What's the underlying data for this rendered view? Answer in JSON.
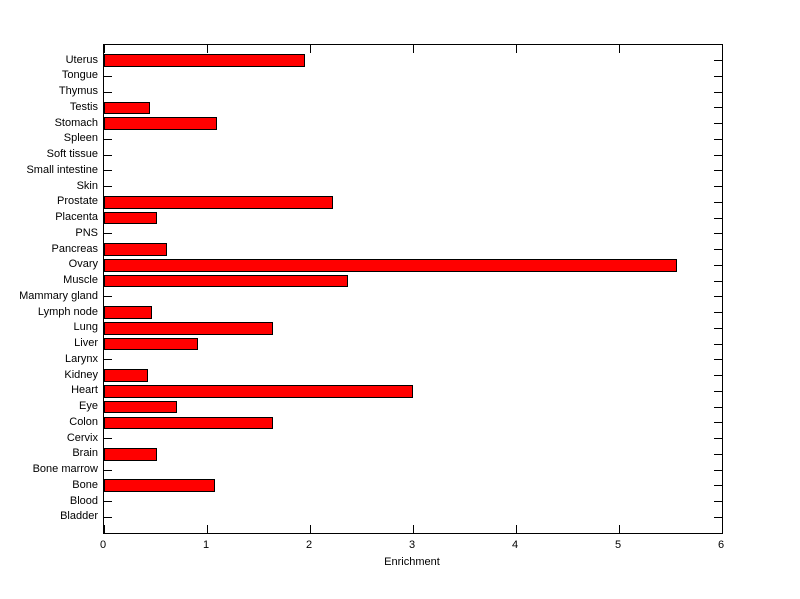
{
  "figure": {
    "background_color": "#ffffff",
    "axis_color": "#000000",
    "text_color": "#000000"
  },
  "chart_data": {
    "type": "bar",
    "orientation": "horizontal",
    "title": "",
    "xlabel": "Enrichment",
    "ylabel": "",
    "xlim": [
      0,
      6
    ],
    "xticks": [
      "0",
      "1",
      "2",
      "3",
      "4",
      "5",
      "6"
    ],
    "grid": false,
    "legend": null,
    "bar_color": "#ff0000",
    "bar_edge_color": "#000000",
    "categories": [
      "Uterus",
      "Tongue",
      "Thymus",
      "Testis",
      "Stomach",
      "Spleen",
      "Soft tissue",
      "Small intestine",
      "Skin",
      "Prostate",
      "Placenta",
      "PNS",
      "Pancreas",
      "Ovary",
      "Muscle",
      "Mammary gland",
      "Lymph node",
      "Lung",
      "Liver",
      "Larynx",
      "Kidney",
      "Heart",
      "Eye",
      "Colon",
      "Cervix",
      "Brain",
      "Bone marrow",
      "Bone",
      "Blood",
      "Bladder"
    ],
    "values": [
      1.95,
      0,
      0,
      0.45,
      1.1,
      0,
      0,
      0,
      0,
      2.22,
      0.51,
      0,
      0.61,
      5.56,
      2.37,
      0,
      0.47,
      1.64,
      0.91,
      0,
      0.43,
      3.0,
      0.71,
      1.64,
      0,
      0.51,
      0,
      1.08,
      0,
      0
    ]
  }
}
